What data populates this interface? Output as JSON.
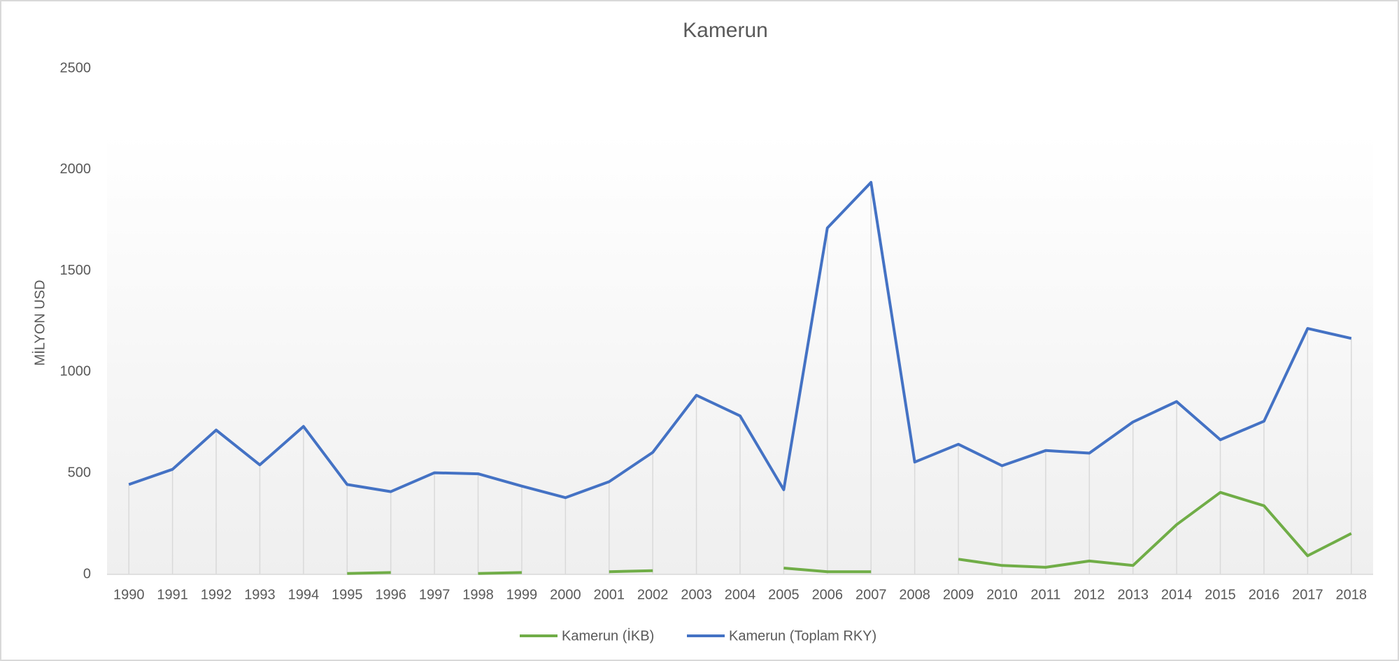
{
  "chart_data": {
    "type": "line",
    "title": "Kamerun",
    "y_label": "MİLYON USD",
    "categories": [
      "1990",
      "1991",
      "1992",
      "1993",
      "1994",
      "1995",
      "1996",
      "1997",
      "1998",
      "1999",
      "2000",
      "2001",
      "2002",
      "2003",
      "2004",
      "2005",
      "2006",
      "2007",
      "2008",
      "2009",
      "2010",
      "2011",
      "2012",
      "2013",
      "2014",
      "2015",
      "2016",
      "2017",
      "2018"
    ],
    "series": [
      {
        "name": "Kamerun (İKB)",
        "color": "#70ad47",
        "values": [
          null,
          null,
          null,
          null,
          null,
          4,
          9,
          null,
          4,
          9,
          null,
          13,
          18,
          null,
          null,
          31,
          13,
          13,
          null,
          75,
          44,
          35,
          66,
          44,
          246,
          405,
          339,
          92,
          202
        ]
      },
      {
        "name": "Kamerun (Toplam RKY)",
        "color": "#4472c4",
        "values": [
          444,
          519,
          713,
          541,
          731,
          444,
          409,
          502,
          497,
          436,
          379,
          458,
          603,
          885,
          783,
          418,
          1712,
          1937,
          555,
          643,
          537,
          612,
          599,
          753,
          854,
          665,
          757,
          1215,
          1166
        ]
      }
    ],
    "ylim": [
      0,
      2500
    ],
    "yticks": [
      0,
      500,
      1000,
      1500,
      2000,
      2500
    ],
    "drop_lines": true,
    "legend": "bottom"
  }
}
